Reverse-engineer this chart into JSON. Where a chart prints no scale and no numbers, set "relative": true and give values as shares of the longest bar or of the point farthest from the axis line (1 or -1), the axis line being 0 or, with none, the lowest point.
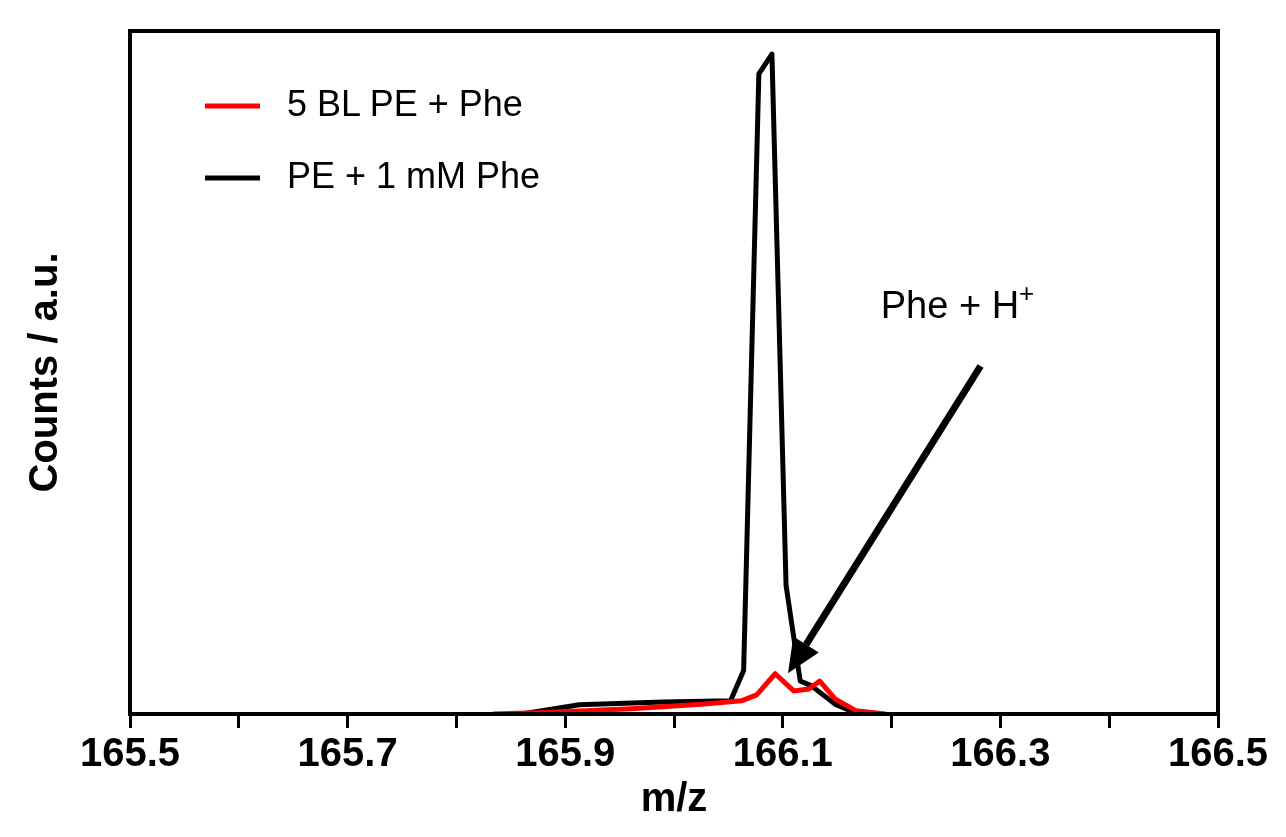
{
  "chart_data": {
    "type": "line",
    "xlabel": "m/z",
    "ylabel": "Counts / a.u.",
    "relative": true,
    "legend": "top left",
    "marker": "none",
    "line_style": "solid",
    "xlim": [
      165.5,
      166.5
    ],
    "xticks": [
      165.5,
      {
        "value": 165.6,
        "label": null
      },
      165.7,
      {
        "value": 165.8,
        "label": null
      },
      165.9,
      {
        "value": 166.0,
        "label": null
      },
      166.1,
      {
        "value": 166.2,
        "label": null
      },
      166.3,
      {
        "value": 166.4,
        "label": null
      },
      166.5
    ],
    "annotations": [
      "Phe + H$^{+}$"
    ],
    "series": [
      {
        "name": "5 BL PE + Phe",
        "color": "#ff0000",
        "x": [
          165.834,
          165.875,
          165.961,
          166.028,
          166.062,
          166.076,
          166.093,
          166.11,
          166.124,
          166.134,
          166.148,
          166.167,
          166.194
        ],
        "values": [
          0,
          0.002,
          0.008,
          0.015,
          0.02,
          0.029,
          0.061,
          0.035,
          0.038,
          0.05,
          0.023,
          0.005,
          0
        ]
      },
      {
        "name": "PE + 1 mM Phe",
        "color": "#000000",
        "x": [
          165.86,
          165.913,
          165.99,
          166.052,
          166.064,
          166.078,
          166.09,
          166.103,
          166.116,
          166.126,
          166.148,
          166.162,
          166.19
        ],
        "values": [
          0,
          0.014,
          0.018,
          0.02,
          0.066,
          0.97,
          1.0,
          0.195,
          0.05,
          0.043,
          0.015,
          0.005,
          0
        ]
      }
    ]
  }
}
